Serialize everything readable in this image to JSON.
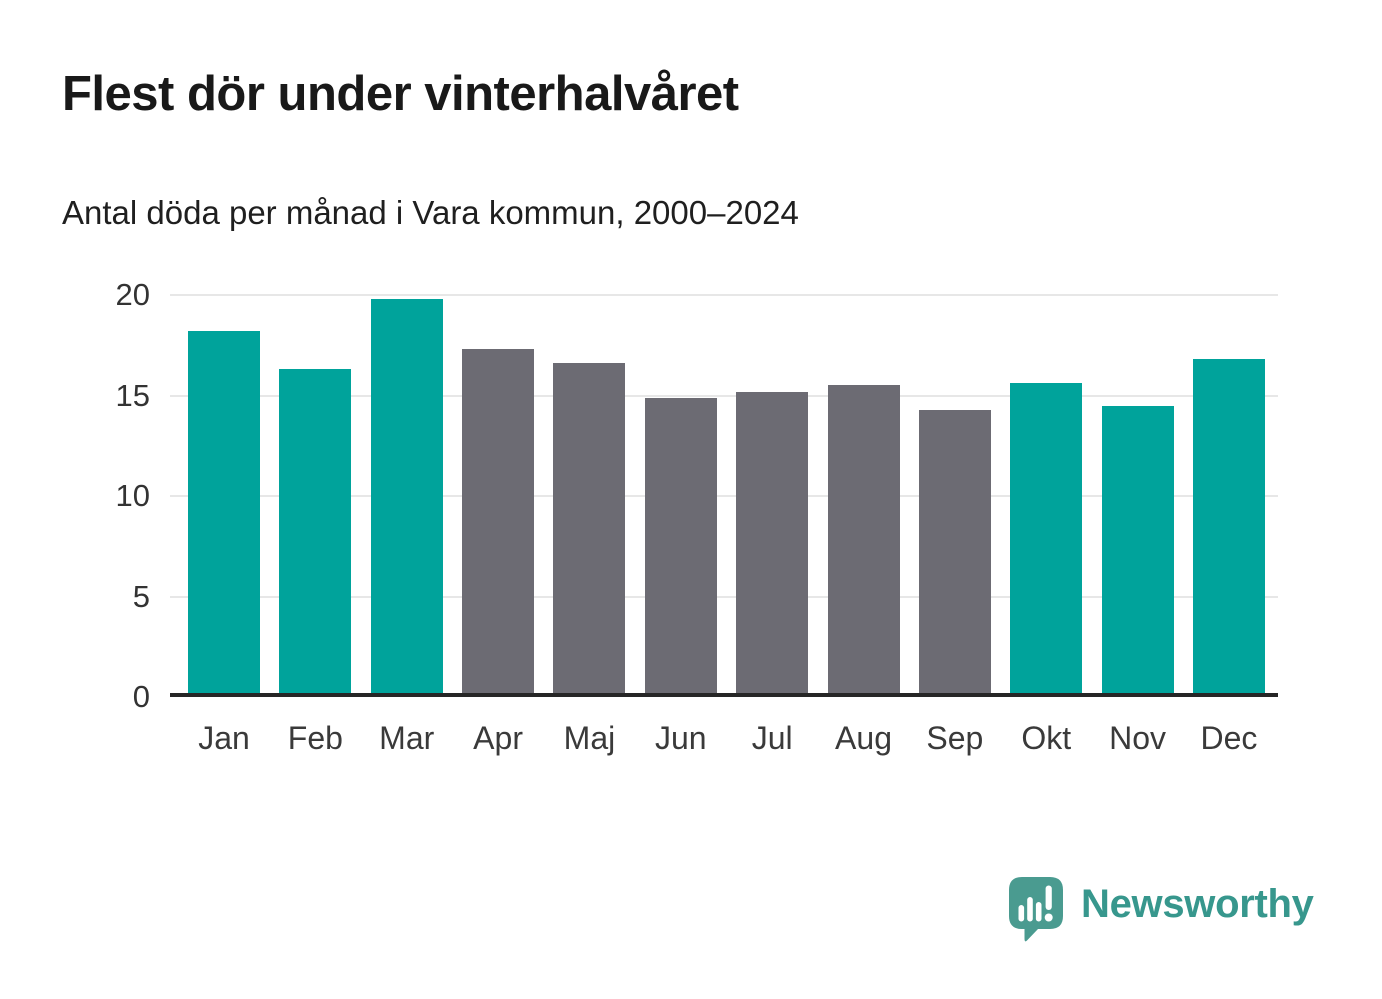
{
  "header": {
    "title": "Flest dör under vinterhalvåret",
    "subtitle": "Antal döda per månad i Vara kommun, 2000–2024"
  },
  "chart_data": {
    "type": "bar",
    "title": "Flest dör under vinterhalvåret",
    "subtitle": "Antal döda per månad i Vara kommun, 2000–2024",
    "categories": [
      "Jan",
      "Feb",
      "Mar",
      "Apr",
      "Maj",
      "Jun",
      "Jul",
      "Aug",
      "Sep",
      "Okt",
      "Nov",
      "Dec"
    ],
    "values": [
      18.0,
      16.1,
      19.6,
      17.1,
      16.4,
      14.7,
      15.0,
      15.3,
      14.1,
      15.4,
      14.3,
      16.6
    ],
    "bar_colors": [
      "#00a39b",
      "#00a39b",
      "#00a39b",
      "#6c6b73",
      "#6c6b73",
      "#6c6b73",
      "#6c6b73",
      "#6c6b73",
      "#6c6b73",
      "#00a39b",
      "#00a39b",
      "#00a39b"
    ],
    "xlabel": "",
    "ylabel": "",
    "ylim": [
      0,
      20
    ],
    "yticks": [
      0,
      5,
      10,
      15,
      20
    ],
    "grid": true,
    "legend": false,
    "colors": {
      "highlight_teal": "#00a39b",
      "neutral_gray": "#6c6b73",
      "gridline": "#e7e7e7",
      "axis_line": "#262626"
    }
  },
  "branding": {
    "name": "Newsworthy",
    "icon": "newsworthy-speech-bubble-chart-icon",
    "icon_color": "#4a9b90",
    "text_color": "#37978d"
  }
}
